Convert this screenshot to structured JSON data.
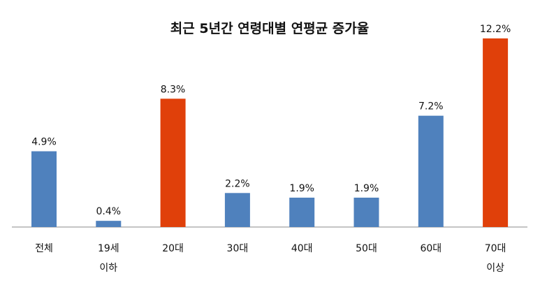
{
  "chart_data": {
    "type": "bar",
    "title": "최근 5년간 연령대별 연평균 증가율",
    "categories": [
      "전체",
      "19세 이하",
      "20대",
      "30대",
      "40대",
      "50대",
      "60대",
      "70대 이상"
    ],
    "values": [
      4.9,
      0.4,
      8.3,
      2.2,
      1.9,
      1.9,
      7.2,
      12.2
    ],
    "value_labels": [
      "4.9%",
      "0.4%",
      "8.3%",
      "2.2%",
      "1.9%",
      "1.9%",
      "7.2%",
      "12.2%"
    ],
    "colors": [
      "#4f81bd",
      "#4f81bd",
      "#e0400a",
      "#4f81bd",
      "#4f81bd",
      "#4f81bd",
      "#4f81bd",
      "#e0400a"
    ]
  }
}
